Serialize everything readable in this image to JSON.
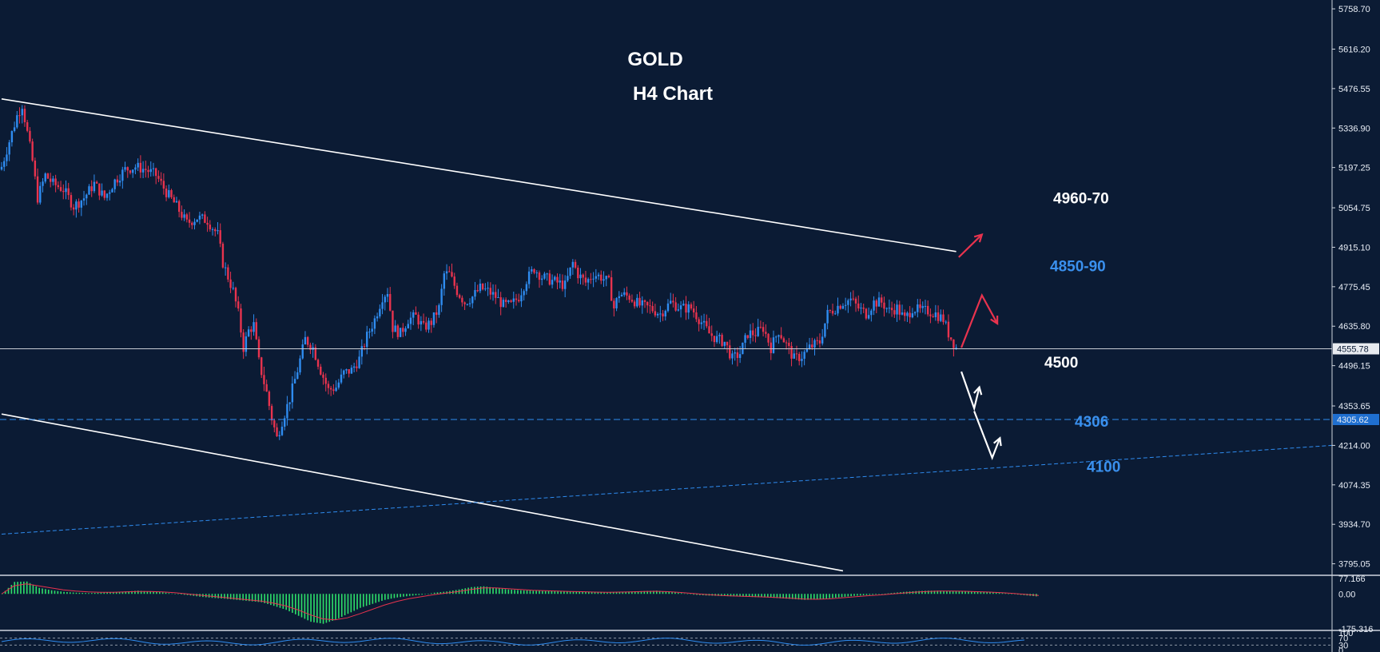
{
  "chart_data": {
    "type": "candlestick",
    "title": "GOLD",
    "subtitle": "H4 Chart",
    "colors": {
      "background": "#0b1b34",
      "bullish": "#2f8cf0",
      "bearish": "#e8334e",
      "trendline": "#ffffff",
      "support_dash": "#2f8cf0",
      "macd_histogram": "#2ee06a",
      "macd_signal": "#e8334e",
      "annotation_blue": "#3a90ee",
      "annotation_white": "#ffffff",
      "arrow_red": "#e8334e"
    },
    "y_axis": {
      "ticks": [
        "5758.70",
        "5616.20",
        "5476.55",
        "5336.90",
        "5197.25",
        "5054.75",
        "4915.10",
        "4775.45",
        "4635.80",
        "4496.15",
        "4353.65",
        "4214.00",
        "4074.35",
        "3934.70",
        "3795.05"
      ],
      "current_price_label": "4555.78",
      "current_price": 4555.78,
      "support_label": "4305.62",
      "support_price": 4305.62
    },
    "series": [
      {
        "close_path": [
          [
            0,
            5200
          ],
          [
            3,
            5290
          ],
          [
            6,
            5380
          ],
          [
            8,
            5420
          ],
          [
            10,
            5320
          ],
          [
            12,
            5220
          ],
          [
            14,
            5090
          ],
          [
            17,
            5170
          ],
          [
            20,
            5140
          ],
          [
            24,
            5120
          ],
          [
            28,
            5060
          ],
          [
            32,
            5090
          ],
          [
            36,
            5140
          ],
          [
            40,
            5090
          ],
          [
            44,
            5150
          ],
          [
            48,
            5190
          ],
          [
            52,
            5200
          ],
          [
            56,
            5190
          ],
          [
            60,
            5170
          ],
          [
            64,
            5110
          ],
          [
            68,
            5060
          ],
          [
            72,
            5000
          ],
          [
            76,
            5020
          ],
          [
            80,
            5010
          ],
          [
            84,
            4960
          ],
          [
            86,
            4860
          ],
          [
            88,
            4810
          ],
          [
            90,
            4760
          ],
          [
            92,
            4680
          ],
          [
            94,
            4560
          ],
          [
            96,
            4620
          ],
          [
            98,
            4640
          ],
          [
            100,
            4510
          ],
          [
            103,
            4400
          ],
          [
            105,
            4310
          ],
          [
            107,
            4240
          ],
          [
            109,
            4300
          ],
          [
            112,
            4380
          ],
          [
            115,
            4480
          ],
          [
            118,
            4590
          ],
          [
            121,
            4560
          ],
          [
            124,
            4480
          ],
          [
            127,
            4410
          ],
          [
            130,
            4420
          ],
          [
            133,
            4470
          ],
          [
            136,
            4480
          ],
          [
            139,
            4520
          ],
          [
            142,
            4600
          ],
          [
            145,
            4660
          ],
          [
            148,
            4740
          ],
          [
            150,
            4760
          ],
          [
            152,
            4630
          ],
          [
            155,
            4610
          ],
          [
            158,
            4660
          ],
          [
            161,
            4670
          ],
          [
            164,
            4630
          ],
          [
            167,
            4650
          ],
          [
            170,
            4700
          ],
          [
            172,
            4820
          ],
          [
            174,
            4820
          ],
          [
            177,
            4760
          ],
          [
            180,
            4720
          ],
          [
            183,
            4740
          ],
          [
            186,
            4770
          ],
          [
            189,
            4760
          ],
          [
            192,
            4740
          ],
          [
            195,
            4710
          ],
          [
            198,
            4710
          ],
          [
            201,
            4740
          ],
          [
            204,
            4800
          ],
          [
            207,
            4840
          ],
          [
            210,
            4810
          ],
          [
            213,
            4800
          ],
          [
            216,
            4790
          ],
          [
            219,
            4780
          ],
          [
            222,
            4860
          ],
          [
            224,
            4820
          ],
          [
            227,
            4790
          ],
          [
            230,
            4820
          ],
          [
            233,
            4810
          ],
          [
            236,
            4790
          ],
          [
            238,
            4700
          ],
          [
            240,
            4750
          ],
          [
            244,
            4740
          ],
          [
            248,
            4710
          ],
          [
            252,
            4700
          ],
          [
            256,
            4680
          ],
          [
            260,
            4720
          ],
          [
            264,
            4700
          ],
          [
            268,
            4700
          ],
          [
            272,
            4650
          ],
          [
            275,
            4610
          ],
          [
            278,
            4590
          ],
          [
            281,
            4580
          ],
          [
            284,
            4520
          ],
          [
            287,
            4540
          ],
          [
            290,
            4610
          ],
          [
            293,
            4610
          ],
          [
            296,
            4630
          ],
          [
            299,
            4560
          ],
          [
            302,
            4620
          ],
          [
            305,
            4570
          ],
          [
            308,
            4520
          ],
          [
            311,
            4530
          ],
          [
            314,
            4560
          ],
          [
            318,
            4580
          ],
          [
            321,
            4680
          ],
          [
            324,
            4700
          ],
          [
            327,
            4720
          ],
          [
            330,
            4730
          ],
          [
            333,
            4700
          ],
          [
            336,
            4680
          ],
          [
            339,
            4720
          ],
          [
            342,
            4720
          ],
          [
            345,
            4690
          ],
          [
            348,
            4700
          ],
          [
            351,
            4660
          ],
          [
            354,
            4700
          ],
          [
            357,
            4690
          ],
          [
            360,
            4690
          ],
          [
            363,
            4680
          ],
          [
            366,
            4660
          ],
          [
            368,
            4610
          ],
          [
            371,
            4560
          ]
        ]
      }
    ],
    "x_range": [
      0,
      371
    ],
    "ylim": [
      3760,
      5790
    ],
    "trendlines": [
      {
        "from": {
          "x": 0,
          "y": 5440
        },
        "to": {
          "x": 371,
          "y": 4900
        }
      },
      {
        "from": {
          "x": 0,
          "y": 4325
        },
        "to": {
          "x": 327,
          "y": 3770
        }
      }
    ],
    "horizontal_levels": [
      {
        "price": 4555.78,
        "style": "solid"
      },
      {
        "price": 4305.62,
        "style": "dashed"
      }
    ],
    "rising_dashed_line": {
      "from": {
        "x": 0,
        "y": 3900
      },
      "to": {
        "x": 371,
        "y": 4214
      }
    },
    "annotations": [
      {
        "text": "4960-70",
        "color": "white",
        "price": 5070
      },
      {
        "text": "4850-90",
        "color": "blue",
        "price": 4830
      },
      {
        "text": "4500",
        "color": "white",
        "price": 4490
      },
      {
        "text": "4306",
        "color": "blue",
        "price": 4280
      },
      {
        "text": "4100",
        "color": "blue",
        "price": 4120
      }
    ],
    "projection_arrows": [
      {
        "color": "red",
        "path": [
          [
            372,
            4880
          ],
          [
            381,
            4960
          ]
        ]
      },
      {
        "color": "red",
        "path": [
          [
            373,
            4560
          ],
          [
            381,
            4745
          ],
          [
            387,
            4645
          ]
        ]
      },
      {
        "color": "white",
        "path": [
          [
            373,
            4475
          ],
          [
            378,
            4345
          ],
          [
            380,
            4420
          ]
        ]
      },
      {
        "color": "white",
        "path": [
          [
            378,
            4335
          ],
          [
            385,
            4170
          ],
          [
            388,
            4240
          ]
        ]
      }
    ],
    "indicators": [
      {
        "name": "MACD",
        "ticks": [
          "77.166",
          "0.00",
          "-175.316"
        ],
        "ylim": [
          -175.316,
          77.166
        ],
        "histogram": [
          0,
          60,
          62,
          30,
          18,
          10,
          6,
          4,
          6,
          8,
          12,
          16,
          12,
          8,
          0,
          -6,
          -14,
          -20,
          -24,
          -30,
          -36,
          -42,
          -60,
          -80,
          -110,
          -140,
          -150,
          -130,
          -100,
          -70,
          -50,
          -30,
          -18,
          -10,
          -4,
          6,
          12,
          22,
          34,
          38,
          30,
          22,
          18,
          16,
          14,
          14,
          12,
          10,
          8,
          6,
          10,
          12,
          14,
          16,
          10,
          4,
          -4,
          -8,
          -10,
          -12,
          -14,
          -16,
          -18,
          -22,
          -26,
          -30,
          -28,
          -22,
          -16,
          -10,
          -6,
          -2,
          4,
          10,
          14,
          16,
          16,
          14,
          12,
          10,
          8,
          4,
          -2,
          -8,
          -14
        ],
        "signal": [
          0,
          40,
          50,
          40,
          30,
          20,
          14,
          10,
          8,
          8,
          10,
          12,
          12,
          10,
          6,
          0,
          -6,
          -12,
          -18,
          -24,
          -30,
          -36,
          -46,
          -60,
          -80,
          -105,
          -125,
          -130,
          -120,
          -100,
          -78,
          -56,
          -38,
          -24,
          -14,
          -4,
          4,
          12,
          22,
          30,
          30,
          26,
          22,
          18,
          16,
          14,
          12,
          11,
          9,
          8,
          9,
          10,
          12,
          13,
          11,
          7,
          2,
          -3,
          -7,
          -10,
          -12,
          -14,
          -16,
          -19,
          -22,
          -26,
          -27,
          -25,
          -20,
          -15,
          -10,
          -6,
          -1,
          4,
          9,
          12,
          14,
          14,
          13,
          11,
          9,
          6,
          2,
          -3,
          -8
        ]
      },
      {
        "name": "oscillator",
        "ticks": [
          "100",
          "70",
          "30",
          "0"
        ],
        "ylim": [
          0,
          100
        ]
      }
    ]
  }
}
